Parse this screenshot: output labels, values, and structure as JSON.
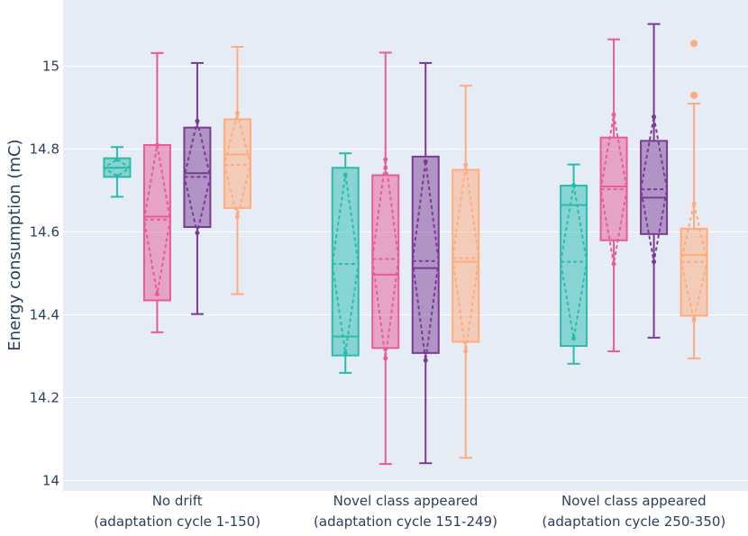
{
  "chart_data": {
    "type": "box",
    "title": "",
    "xlabel": "",
    "ylabel": "Energy consumption (mC)",
    "ylim": [
      13.975,
      15.16
    ],
    "yticks": [
      {
        "value": 14,
        "label": "14"
      },
      {
        "value": 14.2,
        "label": "14.2"
      },
      {
        "value": 14.4,
        "label": "14.4"
      },
      {
        "value": 14.6,
        "label": "14.6"
      },
      {
        "value": 14.8,
        "label": "14.8"
      },
      {
        "value": 15,
        "label": "15"
      }
    ],
    "categories": [
      {
        "line1": "No drift",
        "line2": "(adaptation cycle 1-150)"
      },
      {
        "line1": "Novel class appeared",
        "line2": "(adaptation cycle 151-249)"
      },
      {
        "line1": "Novel class appeared",
        "line2": "(adaptation cycle 250-350)"
      }
    ],
    "grid": true,
    "legend": "none",
    "series": [
      {
        "color": "#2bbbad",
        "boxes": [
          {
            "whisker_low": 14.685,
            "q1": 14.733,
            "median": 14.755,
            "q3": 14.778,
            "whisker_high": 14.805,
            "mean": 14.755,
            "sd": 0.02,
            "outliers": []
          },
          {
            "whisker_low": 14.26,
            "q1": 14.302,
            "median": 14.348,
            "q3": 14.755,
            "whisker_high": 14.79,
            "mean": 14.523,
            "sd": 0.215,
            "outliers": []
          },
          {
            "whisker_low": 14.282,
            "q1": 14.325,
            "median": 14.665,
            "q3": 14.712,
            "whisker_high": 14.763,
            "mean": 14.528,
            "sd": 0.185,
            "outliers": []
          }
        ]
      },
      {
        "color": "#e85a9a",
        "boxes": [
          {
            "whisker_low": 14.358,
            "q1": 14.435,
            "median": 14.637,
            "q3": 14.81,
            "whisker_high": 15.032,
            "mean": 14.63,
            "sd": 0.18,
            "outliers": []
          },
          {
            "whisker_low": 14.04,
            "q1": 14.32,
            "median": 14.497,
            "q3": 14.737,
            "whisker_high": 15.033,
            "mean": 14.535,
            "sd": 0.24,
            "outliers": []
          },
          {
            "whisker_low": 14.312,
            "q1": 14.58,
            "median": 14.71,
            "q3": 14.828,
            "whisker_high": 15.065,
            "mean": 14.703,
            "sd": 0.18,
            "outliers": []
          }
        ]
      },
      {
        "color": "#7a3b93",
        "boxes": [
          {
            "whisker_low": 14.402,
            "q1": 14.612,
            "median": 14.742,
            "q3": 14.852,
            "whisker_high": 15.008,
            "mean": 14.733,
            "sd": 0.135,
            "outliers": []
          },
          {
            "whisker_low": 14.042,
            "q1": 14.308,
            "median": 14.513,
            "q3": 14.782,
            "whisker_high": 15.008,
            "mean": 14.53,
            "sd": 0.24,
            "outliers": []
          },
          {
            "whisker_low": 14.345,
            "q1": 14.595,
            "median": 14.683,
            "q3": 14.82,
            "whisker_high": 15.102,
            "mean": 14.703,
            "sd": 0.175,
            "outliers": []
          }
        ]
      },
      {
        "color": "#ffab7b",
        "boxes": [
          {
            "whisker_low": 14.45,
            "q1": 14.658,
            "median": 14.787,
            "q3": 14.872,
            "whisker_high": 15.047,
            "mean": 14.762,
            "sd": 0.125,
            "outliers": []
          },
          {
            "whisker_low": 14.055,
            "q1": 14.335,
            "median": 14.528,
            "q3": 14.75,
            "whisker_high": 14.953,
            "mean": 14.537,
            "sd": 0.225,
            "outliers": []
          },
          {
            "whisker_low": 14.295,
            "q1": 14.398,
            "median": 14.545,
            "q3": 14.608,
            "whisker_high": 14.91,
            "mean": 14.528,
            "sd": 0.14,
            "outliers": [
              14.93,
              15.055
            ]
          }
        ]
      }
    ]
  }
}
